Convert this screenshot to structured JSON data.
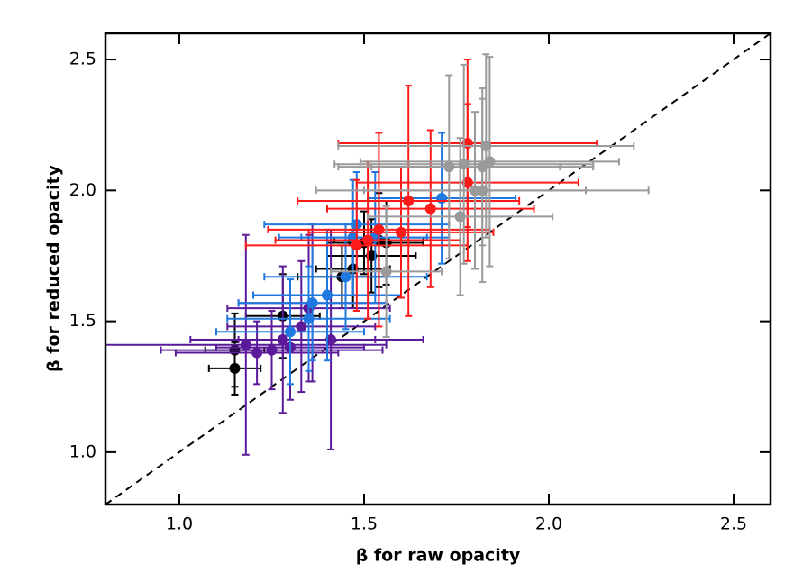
{
  "chart_data": {
    "type": "scatter",
    "xlabel": "β for raw opacity",
    "ylabel": "β for reduced opacity",
    "xlim": [
      0.8,
      2.6
    ],
    "ylim": [
      0.8,
      2.6
    ],
    "xticks": [
      {
        "value": 1,
        "label": "1.0"
      },
      {
        "value": 1.5,
        "label": "1.5"
      },
      {
        "value": 2,
        "label": "2.0"
      },
      {
        "value": 2.5,
        "label": "2.5"
      }
    ],
    "yticks": [
      {
        "value": 1,
        "label": "1.0"
      },
      {
        "value": 1.5,
        "label": "1.5"
      },
      {
        "value": 2,
        "label": "2.0"
      },
      {
        "value": 2.5,
        "label": "2.5"
      }
    ],
    "series": [
      {
        "color": "#000000",
        "x": [
          1.15,
          1.15,
          1.28,
          1.44,
          1.47,
          1.52,
          1.54,
          1.56,
          1.5
        ],
        "values": [
          1.32,
          1.39,
          1.52,
          1.67,
          1.7,
          1.75,
          1.81,
          1.8,
          1.8
        ],
        "xerr": [
          0.07,
          0.08,
          0.1,
          0.12,
          0.1,
          0.12,
          0.12,
          0.1,
          0.1
        ],
        "yerr": [
          0.1,
          0.14,
          0.16,
          0.12,
          0.15,
          0.14,
          0.18,
          0.16,
          0.12
        ]
      },
      {
        "color": "#5a1a9a",
        "x": [
          1.18,
          1.21,
          1.25,
          1.28,
          1.3,
          1.33,
          1.35,
          1.36,
          1.41
        ],
        "values": [
          1.41,
          1.38,
          1.39,
          1.43,
          1.4,
          1.48,
          1.55,
          1.57,
          1.43
        ],
        "xerr": [
          0.38,
          0.22,
          0.3,
          0.25,
          0.2,
          0.2,
          0.22,
          0.2,
          0.25
        ],
        "yerr": [
          0.42,
          0.12,
          0.15,
          0.28,
          0.2,
          0.25,
          0.28,
          0.3,
          0.42
        ]
      },
      {
        "color": "#1f78e0",
        "x": [
          1.3,
          1.35,
          1.36,
          1.4,
          1.45,
          1.47,
          1.48,
          1.53,
          1.71
        ],
        "values": [
          1.46,
          1.51,
          1.57,
          1.6,
          1.67,
          1.82,
          1.87,
          1.82,
          1.97
        ],
        "xerr": [
          0.2,
          0.22,
          0.2,
          0.2,
          0.22,
          0.2,
          0.25,
          0.2,
          0.2
        ],
        "yerr": [
          0.2,
          0.2,
          0.22,
          0.25,
          0.2,
          0.22,
          0.2,
          0.25,
          0.25
        ]
      },
      {
        "color": "#ff1a1a",
        "x": [
          1.48,
          1.51,
          1.54,
          1.6,
          1.62,
          1.68,
          1.78,
          1.78
        ],
        "values": [
          1.79,
          1.81,
          1.85,
          1.84,
          1.96,
          1.93,
          2.18,
          2.03
        ],
        "xerr": [
          0.3,
          0.25,
          0.3,
          0.25,
          0.3,
          0.28,
          0.35,
          0.3
        ],
        "yerr": [
          0.25,
          0.3,
          0.37,
          0.25,
          0.44,
          0.3,
          0.32,
          0.3
        ]
      },
      {
        "color": "#9a9a9a",
        "x": [
          1.56,
          1.73,
          1.76,
          1.77,
          1.8,
          1.82,
          1.83,
          1.84,
          1.82
        ],
        "values": [
          1.69,
          2.09,
          1.9,
          2.1,
          2.0,
          2.09,
          2.17,
          2.11,
          2.0
        ],
        "xerr": [
          0.15,
          0.3,
          0.25,
          0.35,
          0.3,
          0.3,
          0.4,
          0.35,
          0.45
        ],
        "yerr": [
          0.25,
          0.35,
          0.3,
          0.38,
          0.3,
          0.3,
          0.35,
          0.4,
          0.35
        ]
      }
    ]
  }
}
